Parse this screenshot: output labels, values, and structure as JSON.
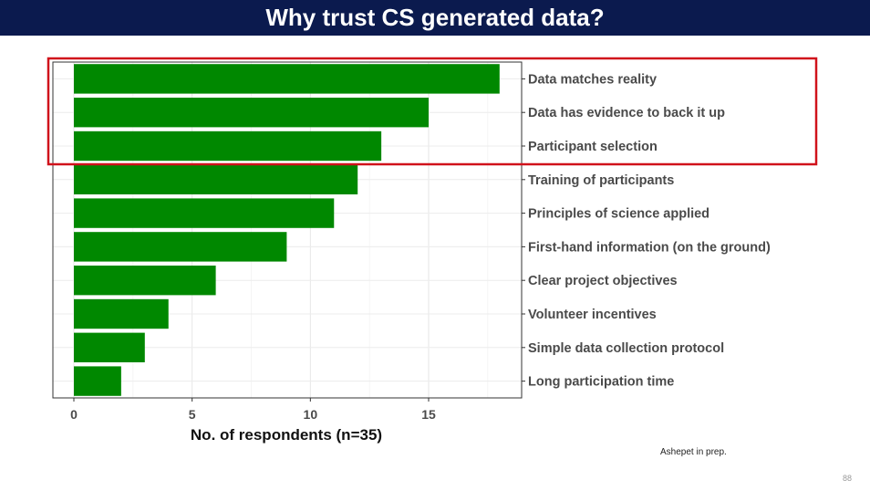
{
  "slide": {
    "title": "Why trust CS generated data?",
    "citation": "Ashepet in prep.",
    "page_number": "88"
  },
  "colors": {
    "title_bar": "#0b1a4e",
    "bar": "#008800",
    "highlight_box": "#d0121b"
  },
  "chart_data": {
    "type": "bar",
    "orientation": "horizontal",
    "categories": [
      "Data matches reality",
      "Data has evidence to back it up",
      "Participant selection",
      "Training of participants",
      "Principles of science applied",
      "First-hand information (on the ground)",
      "Clear project objectives",
      "Volunteer incentives",
      "Simple data collection protocol",
      "Long participation time"
    ],
    "values": [
      18,
      15,
      13,
      12,
      11,
      9,
      6,
      4,
      3,
      2
    ],
    "xlabel": "No. of respondents (n=35)",
    "ylabel": "",
    "xlim": [
      0,
      19
    ],
    "xticks": [
      0,
      5,
      10,
      15
    ],
    "grid": true,
    "highlighted_categories": [
      "Data matches reality",
      "Data has evidence to back it up",
      "Participant selection"
    ]
  }
}
